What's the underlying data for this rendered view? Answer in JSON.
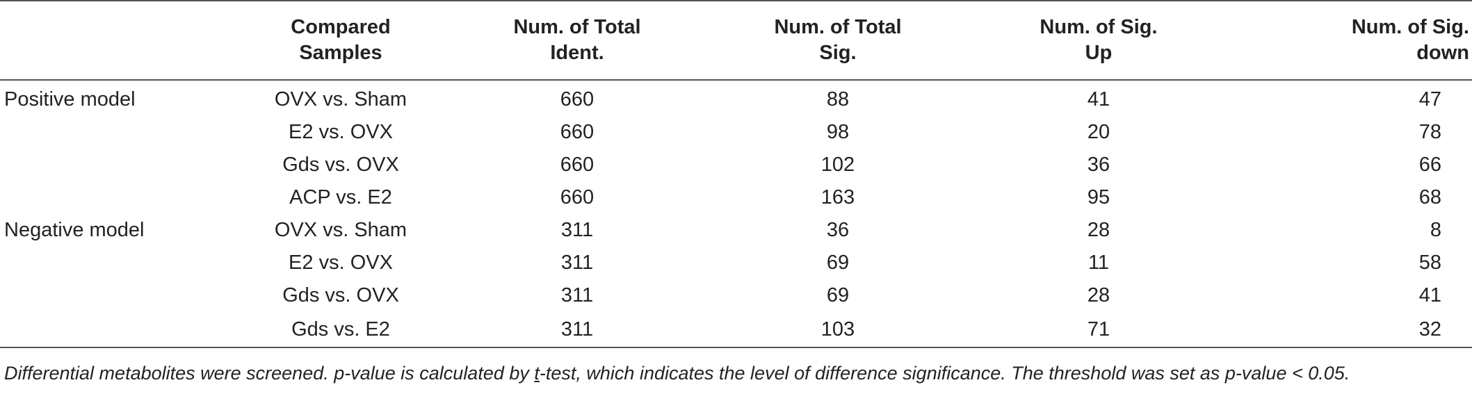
{
  "table": {
    "headers": [
      "",
      "Compared\nSamples",
      "Num. of Total\nIdent.",
      "Num. of Total\nSig.",
      "Num. of Sig.\nUp",
      "Num. of Sig.\ndown"
    ],
    "header_lines": [
      [
        "",
        ""
      ],
      [
        "Compared",
        "Samples"
      ],
      [
        "Num. of Total",
        "Ident."
      ],
      [
        "Num. of Total",
        "Sig."
      ],
      [
        "Num. of Sig.",
        "Up"
      ],
      [
        "Num. of Sig.",
        "down"
      ]
    ],
    "rows": [
      [
        "Positive model",
        "OVX vs. Sham",
        "660",
        "88",
        "41",
        "47"
      ],
      [
        "",
        "E2 vs. OVX",
        "660",
        "98",
        "20",
        "78"
      ],
      [
        "",
        "Gds vs. OVX",
        "660",
        "102",
        "36",
        "66"
      ],
      [
        "",
        "ACP vs. E2",
        "660",
        "163",
        "95",
        "68"
      ],
      [
        "Negative model",
        "OVX vs. Sham",
        "311",
        "36",
        "28",
        "8"
      ],
      [
        "",
        "E2 vs. OVX",
        "311",
        "69",
        "11",
        "58"
      ],
      [
        "",
        "Gds vs. OVX",
        "311",
        "69",
        "28",
        "41"
      ],
      [
        "",
        "Gds vs. E2",
        "311",
        "103",
        "71",
        "32"
      ]
    ]
  },
  "footnote": {
    "part1": "Differential metabolites were screened. p-value is calculated by ",
    "t_letter": "t",
    "part2": "-test, which indicates the level of difference significance. The threshold was set as p-value < 0.05."
  }
}
